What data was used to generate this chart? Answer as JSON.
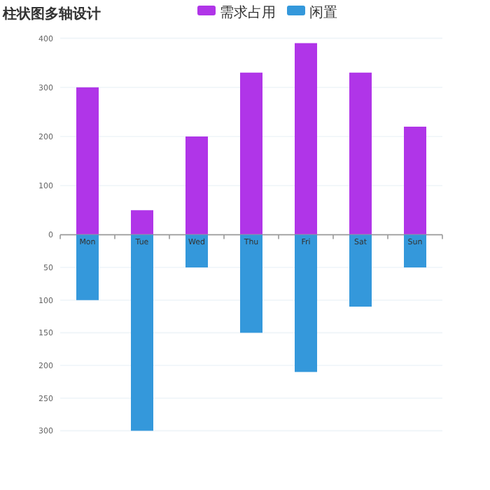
{
  "chart_data": [
    {
      "type": "bar",
      "title": "柱状图多轴设计",
      "categories": [
        null,
        null,
        null,
        null,
        null,
        null,
        null
      ],
      "series": [
        {
          "name": "需求占用",
          "color": "#b035e8",
          "values": [
            300,
            50,
            200,
            330,
            390,
            330,
            220
          ]
        }
      ],
      "ylim": [
        0,
        400
      ],
      "yticks": [
        0,
        100,
        200,
        300,
        400
      ],
      "grid": "y",
      "legend": "top",
      "tick_labels": "y"
    },
    {
      "type": "bar",
      "categories": [
        "Mon",
        "Tue",
        "Wed",
        "Thu",
        "Fri",
        "Sat",
        "Sun"
      ],
      "series": [
        {
          "name": "闲置",
          "color": "#3498db",
          "values": [
            100,
            300,
            50,
            150,
            210,
            110,
            50
          ]
        }
      ],
      "ylim": [
        300,
        0
      ],
      "yticks": [
        50,
        100,
        150,
        200,
        250,
        300
      ],
      "grid": "y",
      "legend": "top"
    }
  ]
}
